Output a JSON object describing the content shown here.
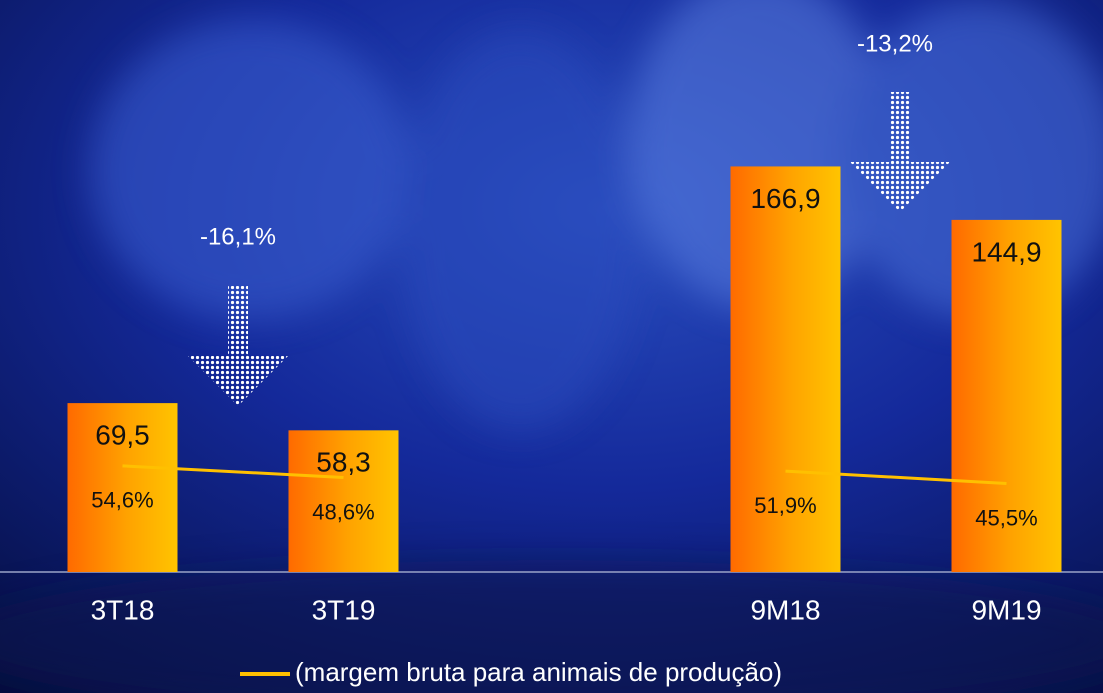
{
  "chart_data": {
    "type": "bar",
    "categories": [
      "3T18",
      "3T19",
      null,
      "9M18",
      "9M19"
    ],
    "series": [
      {
        "color": "#ff7a00",
        "values": [
          69.5,
          58.3,
          null,
          166.9,
          144.9
        ],
        "value_labels": [
          "69,5",
          "58,3",
          null,
          "166,9",
          "144,9"
        ]
      },
      {
        "name": "(margem bruta para animais de produção)",
        "type": "line",
        "axis": "y2",
        "color": "#ffc000",
        "values": [
          54.6,
          48.6,
          null,
          51.9,
          45.5
        ],
        "value_labels": [
          "54,6%",
          "48,6%",
          null,
          "51,9%",
          "45,5%"
        ]
      }
    ],
    "ylim": [
      0,
      200
    ],
    "y2lim": [
      0,
      250
    ],
    "annotations": [
      {
        "text": "-16,1%"
      },
      {
        "text": "-13,2%"
      }
    ]
  }
}
